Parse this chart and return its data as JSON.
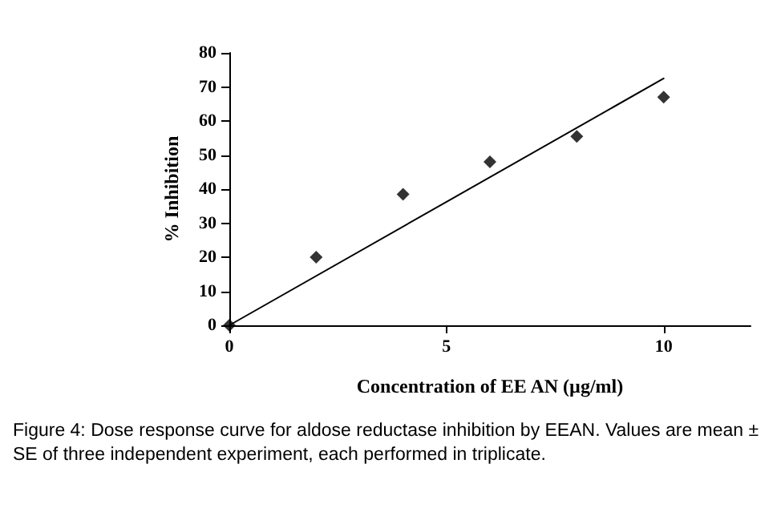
{
  "chart_data": {
    "type": "scatter",
    "xlabel": "Concentration of EE AN (µg/ml)",
    "ylabel": "% Inhibition",
    "xlim": [
      0,
      12
    ],
    "xticks": [
      0,
      5,
      10
    ],
    "ylim": [
      0,
      80
    ],
    "yticks": [
      0,
      10,
      20,
      30,
      40,
      50,
      60,
      70,
      80
    ],
    "grid": false,
    "marker": "diamond",
    "series": [
      {
        "color": "#000000",
        "x": [
          0,
          2,
          4,
          6,
          8,
          10
        ],
        "values": [
          0,
          20,
          38.5,
          48,
          55.5,
          67
        ]
      },
      {
        "type": "line",
        "color": "#000000",
        "line_style": "solid",
        "marker": "none",
        "x": [
          0,
          10
        ],
        "values": [
          0,
          72.5
        ]
      }
    ],
    "annotations": [
      "Figure 4: Dose response curve for aldose reductase inhibition by EEAN. Values are mean ± SE of three independent experiment, each performed in triplicate."
    ]
  }
}
